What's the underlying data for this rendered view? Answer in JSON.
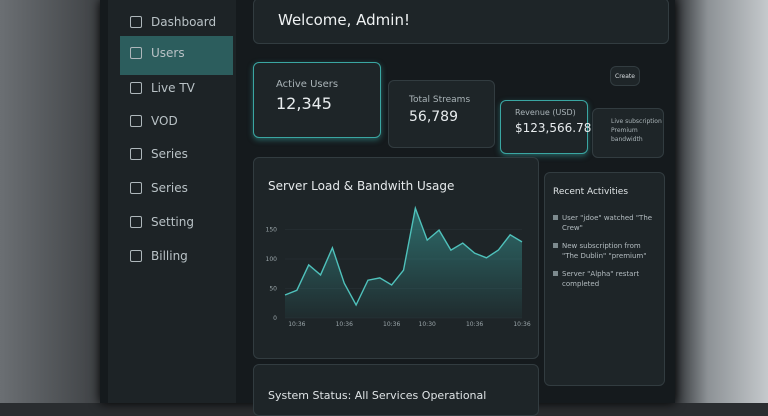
{
  "sidebar": [
    "Dashboard",
    "Users",
    "Live TV",
    "VOD",
    "Series",
    "Series",
    "Setting",
    "Billing"
  ],
  "header": {
    "title": "Welcome, Admin!",
    "button": "Create"
  },
  "stats": [
    {
      "label": "Active Users",
      "value": "12,345"
    },
    {
      "label": "Total Streams",
      "value": "56,789"
    },
    {
      "label": "Revenue (USD)",
      "value": "$123,566.78"
    },
    {
      "label": "Live subscription",
      "value": "Premium bandwidth"
    }
  ],
  "chart_data": {
    "type": "line",
    "title": "Server Load & Bandwith Usage",
    "categories": [
      null,
      "10:36",
      null,
      null,
      null,
      "10:36",
      null,
      null,
      null,
      "10:36",
      null,
      null,
      "10:30",
      null,
      null,
      null,
      "10:36",
      null,
      null,
      null,
      "10:36"
    ],
    "series": [
      {
        "color": "#4fc1bb",
        "values": [
          39,
          47,
          90,
          73,
          119,
          59,
          22,
          64,
          68,
          56,
          81,
          186,
          132,
          149,
          115,
          127,
          110,
          102,
          115,
          141,
          129
        ]
      }
    ],
    "ylim": [
      0,
      200
    ],
    "yticks": [
      0,
      50,
      100,
      150
    ],
    "grid": true
  },
  "activities": {
    "title": "Recent Activities",
    "items": [
      "User \"jdoe\" watched \"The Crew\"",
      "New subscription from \"The Dublin\" \"premium\"",
      "Server \"Alpha\" restart completed"
    ]
  },
  "status": "System Status: All Services Operational"
}
